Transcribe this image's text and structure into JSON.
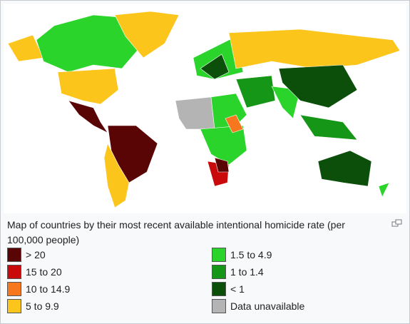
{
  "caption": "Map of countries by their most recent available intentional homicide rate (per 100,000 people)",
  "legend": [
    {
      "label": "> 20",
      "color": "#5a0505"
    },
    {
      "label": "15 to 20",
      "color": "#c80a0a"
    },
    {
      "label": "10 to 14.9",
      "color": "#f7771e"
    },
    {
      "label": "5 to 9.9",
      "color": "#fcc51c"
    },
    {
      "label": "1.5 to 4.9",
      "color": "#2ad42a"
    },
    {
      "label": "1 to 1.4",
      "color": "#169616"
    },
    {
      "label": "< 1",
      "color": "#0b4f0b"
    },
    {
      "label": "Data unavailable",
      "color": "#b4b4b4"
    }
  ]
}
